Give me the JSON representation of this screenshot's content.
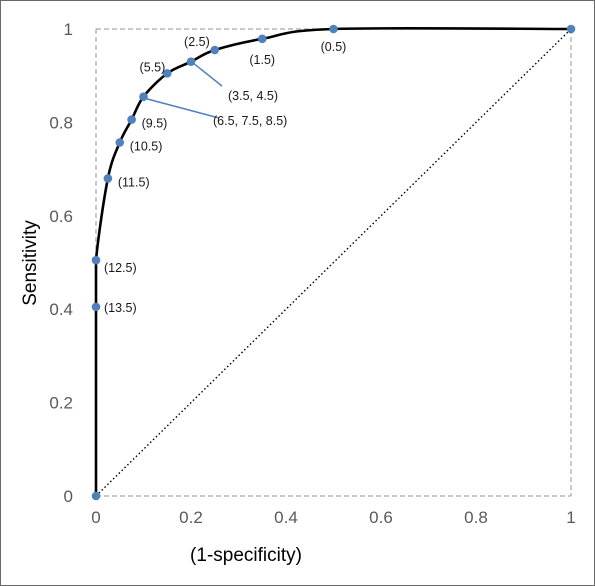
{
  "chart_data": {
    "type": "line",
    "title": "",
    "xlabel": "(1-specificity)",
    "ylabel": "Sensitivity",
    "xlim": [
      0,
      1
    ],
    "ylim": [
      0,
      1
    ],
    "x_ticks": [
      "0",
      "0.2",
      "0.4",
      "0.6",
      "0.8",
      "1"
    ],
    "y_ticks": [
      "0",
      "0.2",
      "0.4",
      "0.6",
      "0.8",
      "1"
    ],
    "grid": false,
    "legend": "none",
    "series": [
      {
        "color": "#000000",
        "marker_color": "#4f81bd",
        "points": [
          {
            "x": 0,
            "y": 0,
            "label": ""
          },
          {
            "x": 0,
            "y": 0.405,
            "label": "(13.5)"
          },
          {
            "x": 0,
            "y": 0.505,
            "label": "(12.5)"
          },
          {
            "x": 0.025,
            "y": 0.68,
            "label": "(11.5)"
          },
          {
            "x": 0.05,
            "y": 0.757,
            "label": "(10.5)"
          },
          {
            "x": 0.075,
            "y": 0.806,
            "label": "(9.5)"
          },
          {
            "x": 0.1,
            "y": 0.855,
            "label": "(6.5, 7.5, 8.5)"
          },
          {
            "x": 0.15,
            "y": 0.905,
            "label": "(5.5)"
          },
          {
            "x": 0.2,
            "y": 0.93,
            "label": "(3.5, 4.5)"
          },
          {
            "x": 0.25,
            "y": 0.955,
            "label": "(2.5)"
          },
          {
            "x": 0.35,
            "y": 0.979,
            "label": "(1.5)"
          },
          {
            "x": 0.5,
            "y": 1.0,
            "label": "(0.5)"
          },
          {
            "x": 1.0,
            "y": 1.0,
            "label": ""
          }
        ]
      }
    ],
    "reference_line": {
      "from": [
        0,
        0
      ],
      "to": [
        1,
        1
      ],
      "style": "dotted",
      "color": "#000000"
    },
    "box_line": {
      "style": "dashed",
      "color": "#a6a6a6"
    }
  }
}
